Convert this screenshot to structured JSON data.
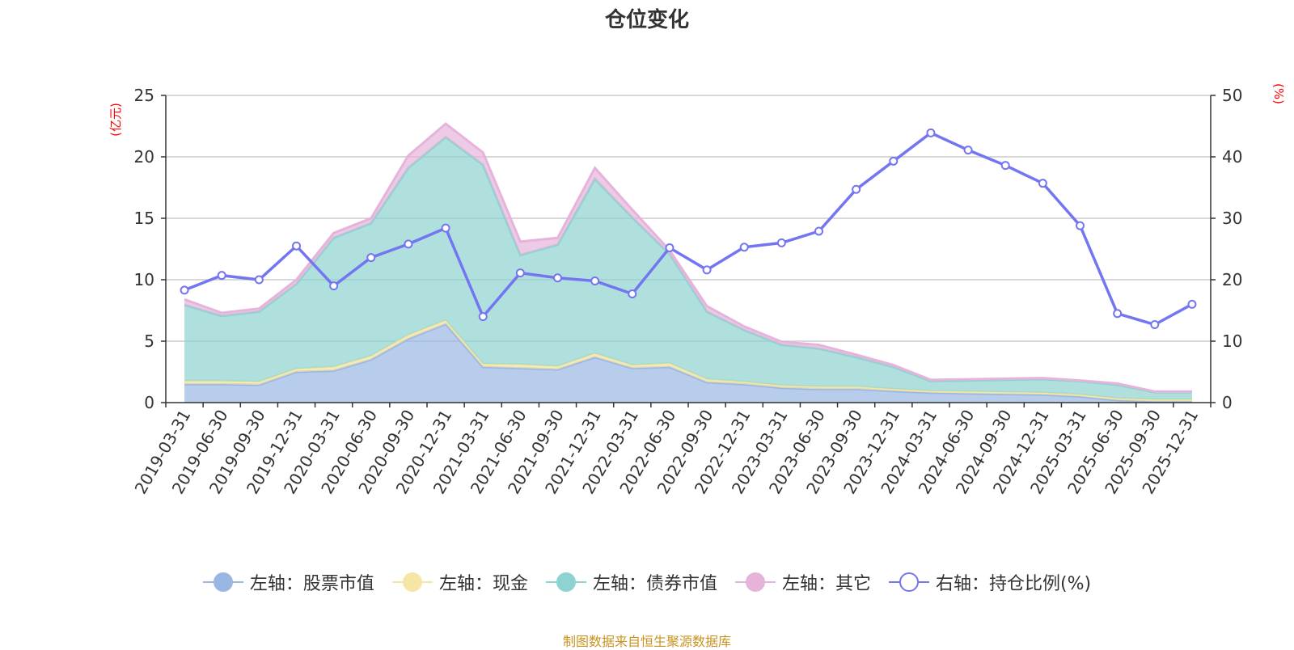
{
  "chart_data": {
    "type": "area",
    "title": "仓位变化",
    "left_unit": "(亿元)",
    "right_unit": "(%)",
    "left_ylim": [
      0,
      25
    ],
    "left_ticks": [
      "0",
      "5",
      "10",
      "15",
      "20",
      "25"
    ],
    "right_ylim": [
      0,
      50
    ],
    "right_ticks": [
      "0",
      "10",
      "20",
      "30",
      "40",
      "50"
    ],
    "categories": [
      "2019-03-31",
      "2019-06-30",
      "2019-09-30",
      "2019-12-31",
      "2020-03-31",
      "2020-06-30",
      "2020-09-30",
      "2020-12-31",
      "2021-03-31",
      "2021-06-30",
      "2021-09-30",
      "2021-12-31",
      "2022-03-31",
      "2022-06-30",
      "2022-09-30",
      "2022-12-31",
      "2023-03-31",
      "2023-06-30",
      "2023-09-30",
      "2023-12-31",
      "2024-03-31",
      "2024-06-30",
      "2024-09-30",
      "2024-12-31",
      "2025-03-31",
      "2025-06-30",
      "2025-09-30",
      "2025-12-31"
    ],
    "series": [
      {
        "name": "左轴：股票市值",
        "axis": "left",
        "kind": "stacked-area",
        "color": "#9ab6e2",
        "values": [
          1.5,
          1.5,
          1.45,
          2.5,
          2.6,
          3.5,
          5.2,
          6.4,
          2.9,
          2.8,
          2.7,
          3.7,
          2.8,
          2.9,
          1.65,
          1.5,
          1.2,
          1.1,
          1.1,
          0.95,
          0.8,
          0.75,
          0.7,
          0.65,
          0.5,
          0.2,
          0.1,
          0.1
        ]
      },
      {
        "name": "左轴：现金",
        "axis": "left",
        "kind": "stacked-area",
        "color": "#f5e6a6",
        "values": [
          0.25,
          0.25,
          0.25,
          0.25,
          0.3,
          0.3,
          0.3,
          0.3,
          0.25,
          0.3,
          0.25,
          0.3,
          0.25,
          0.3,
          0.25,
          0.2,
          0.2,
          0.2,
          0.2,
          0.15,
          0.15,
          0.15,
          0.15,
          0.15,
          0.15,
          0.15,
          0.15,
          0.15
        ]
      },
      {
        "name": "左轴：债券市值",
        "axis": "left",
        "kind": "stacked-area",
        "color": "#8dd3d0",
        "values": [
          6.2,
          5.3,
          5.7,
          6.9,
          10.5,
          10.8,
          13.6,
          14.9,
          16.2,
          8.9,
          9.9,
          14.2,
          12.0,
          8.9,
          5.5,
          4.2,
          3.3,
          3.1,
          2.4,
          1.8,
          0.8,
          0.9,
          1.0,
          1.1,
          1.1,
          1.1,
          0.6,
          0.6
        ]
      },
      {
        "name": "左轴：其它",
        "axis": "left",
        "kind": "stacked-area",
        "color": "#e6b3da",
        "values": [
          0.45,
          0.25,
          0.25,
          0.35,
          0.4,
          0.4,
          1.0,
          1.1,
          1.0,
          1.1,
          0.55,
          0.9,
          0.65,
          0.3,
          0.45,
          0.3,
          0.25,
          0.3,
          0.2,
          0.15,
          0.1,
          0.1,
          0.1,
          0.1,
          0.05,
          0.1,
          0.05,
          0.05
        ]
      },
      {
        "name": "右轴：持仓比例(%)",
        "axis": "right",
        "kind": "line",
        "color": "#7376f0",
        "values": [
          18.3,
          20.7,
          20.0,
          25.5,
          19.0,
          23.6,
          25.8,
          28.4,
          14.0,
          21.1,
          20.3,
          19.8,
          17.7,
          25.2,
          21.6,
          25.3,
          26.0,
          27.9,
          34.7,
          39.3,
          43.9,
          41.1,
          38.6,
          35.7,
          28.8,
          14.5,
          12.7,
          16.0
        ]
      }
    ]
  },
  "source_note": "制图数据来自恒生聚源数据库"
}
